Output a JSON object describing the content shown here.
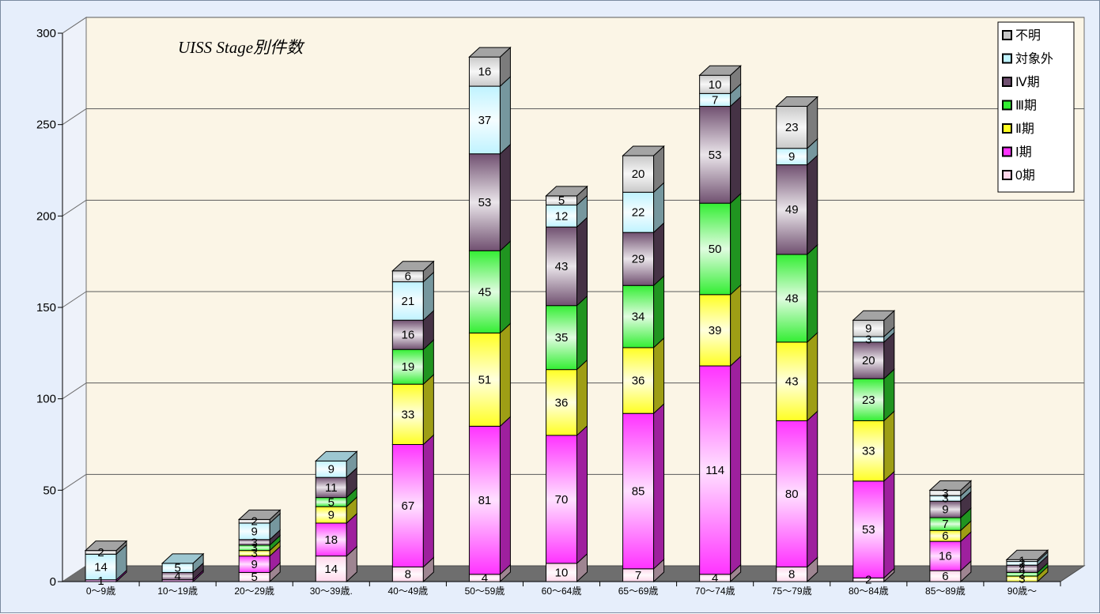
{
  "chart_data": {
    "type": "bar",
    "stacked": true,
    "three_d": true,
    "title": "UISS  Stage別件数",
    "ylim": [
      0,
      300
    ],
    "yticks": [
      0,
      50,
      100,
      150,
      200,
      250,
      300
    ],
    "grid": true,
    "legend_position": "top-right",
    "categories": [
      "0～9歳",
      "10～19歳",
      "20～29歳",
      "30～39歳.",
      "40～49歳",
      "50～59歳",
      "60～64歳",
      "65～69歳",
      "70～74歳",
      "75～79歳",
      "80～84歳",
      "85～89歳",
      "90歳～"
    ],
    "series": [
      {
        "name": "0期",
        "color": "#ffd6ea",
        "values": [
          0,
          0,
          5,
          14,
          8,
          4,
          10,
          7,
          4,
          8,
          2,
          6,
          0
        ]
      },
      {
        "name": "Ⅰ期",
        "color": "#ff33ff",
        "values": [
          1,
          1,
          9,
          18,
          67,
          81,
          70,
          85,
          114,
          80,
          53,
          16,
          0
        ]
      },
      {
        "name": "Ⅱ期",
        "color": "#ffff22",
        "values": [
          0,
          0,
          3,
          9,
          33,
          51,
          36,
          36,
          39,
          43,
          33,
          6,
          3
        ]
      },
      {
        "name": "Ⅲ期",
        "color": "#33ee33",
        "values": [
          0,
          0,
          3,
          5,
          19,
          45,
          35,
          34,
          50,
          48,
          23,
          7,
          2
        ]
      },
      {
        "name": "Ⅳ期",
        "color": "#705070",
        "values": [
          0,
          4,
          3,
          11,
          16,
          53,
          43,
          29,
          53,
          49,
          20,
          9,
          4
        ]
      },
      {
        "name": "対象外",
        "color": "#bff3ff",
        "values": [
          14,
          5,
          9,
          9,
          21,
          37,
          12,
          22,
          7,
          9,
          3,
          3,
          2
        ]
      },
      {
        "name": "不明",
        "color": "#c8c8c8",
        "values": [
          2,
          0,
          2,
          0,
          6,
          16,
          5,
          20,
          10,
          23,
          9,
          3,
          1
        ]
      }
    ],
    "legend_order": [
      "不明",
      "対象外",
      "Ⅳ期",
      "Ⅲ期",
      "Ⅱ期",
      "Ⅰ期",
      "0期"
    ],
    "data_labels": [
      [
        "",
        "1",
        "",
        "",
        "",
        "14",
        "2"
      ],
      [
        "",
        "",
        "",
        "",
        "4",
        "5",
        ""
      ],
      [
        "5",
        "9",
        "3",
        "3",
        "3",
        "9",
        "2"
      ],
      [
        "14",
        "18",
        "9",
        "5",
        "11",
        "9",
        ""
      ],
      [
        "8",
        "67",
        "33",
        "19",
        "16",
        "21",
        "6"
      ],
      [
        "4",
        "81",
        "51",
        "45",
        "53",
        "37",
        "16"
      ],
      [
        "10",
        "70",
        "36",
        "35",
        "43",
        "12",
        "5"
      ],
      [
        "7",
        "85",
        "36",
        "34",
        "29",
        "22",
        "20"
      ],
      [
        "4",
        "114",
        "39",
        "50",
        "53",
        "7",
        "10"
      ],
      [
        "8",
        "80",
        "43",
        "48",
        "49",
        "9",
        "23"
      ],
      [
        "2",
        "53",
        "33",
        "23",
        "20",
        "3",
        "9"
      ],
      [
        "6",
        "16",
        "6",
        "7",
        "9",
        "3",
        "3"
      ],
      [
        "",
        "",
        "3",
        "2",
        "4",
        "2",
        "1"
      ]
    ]
  }
}
